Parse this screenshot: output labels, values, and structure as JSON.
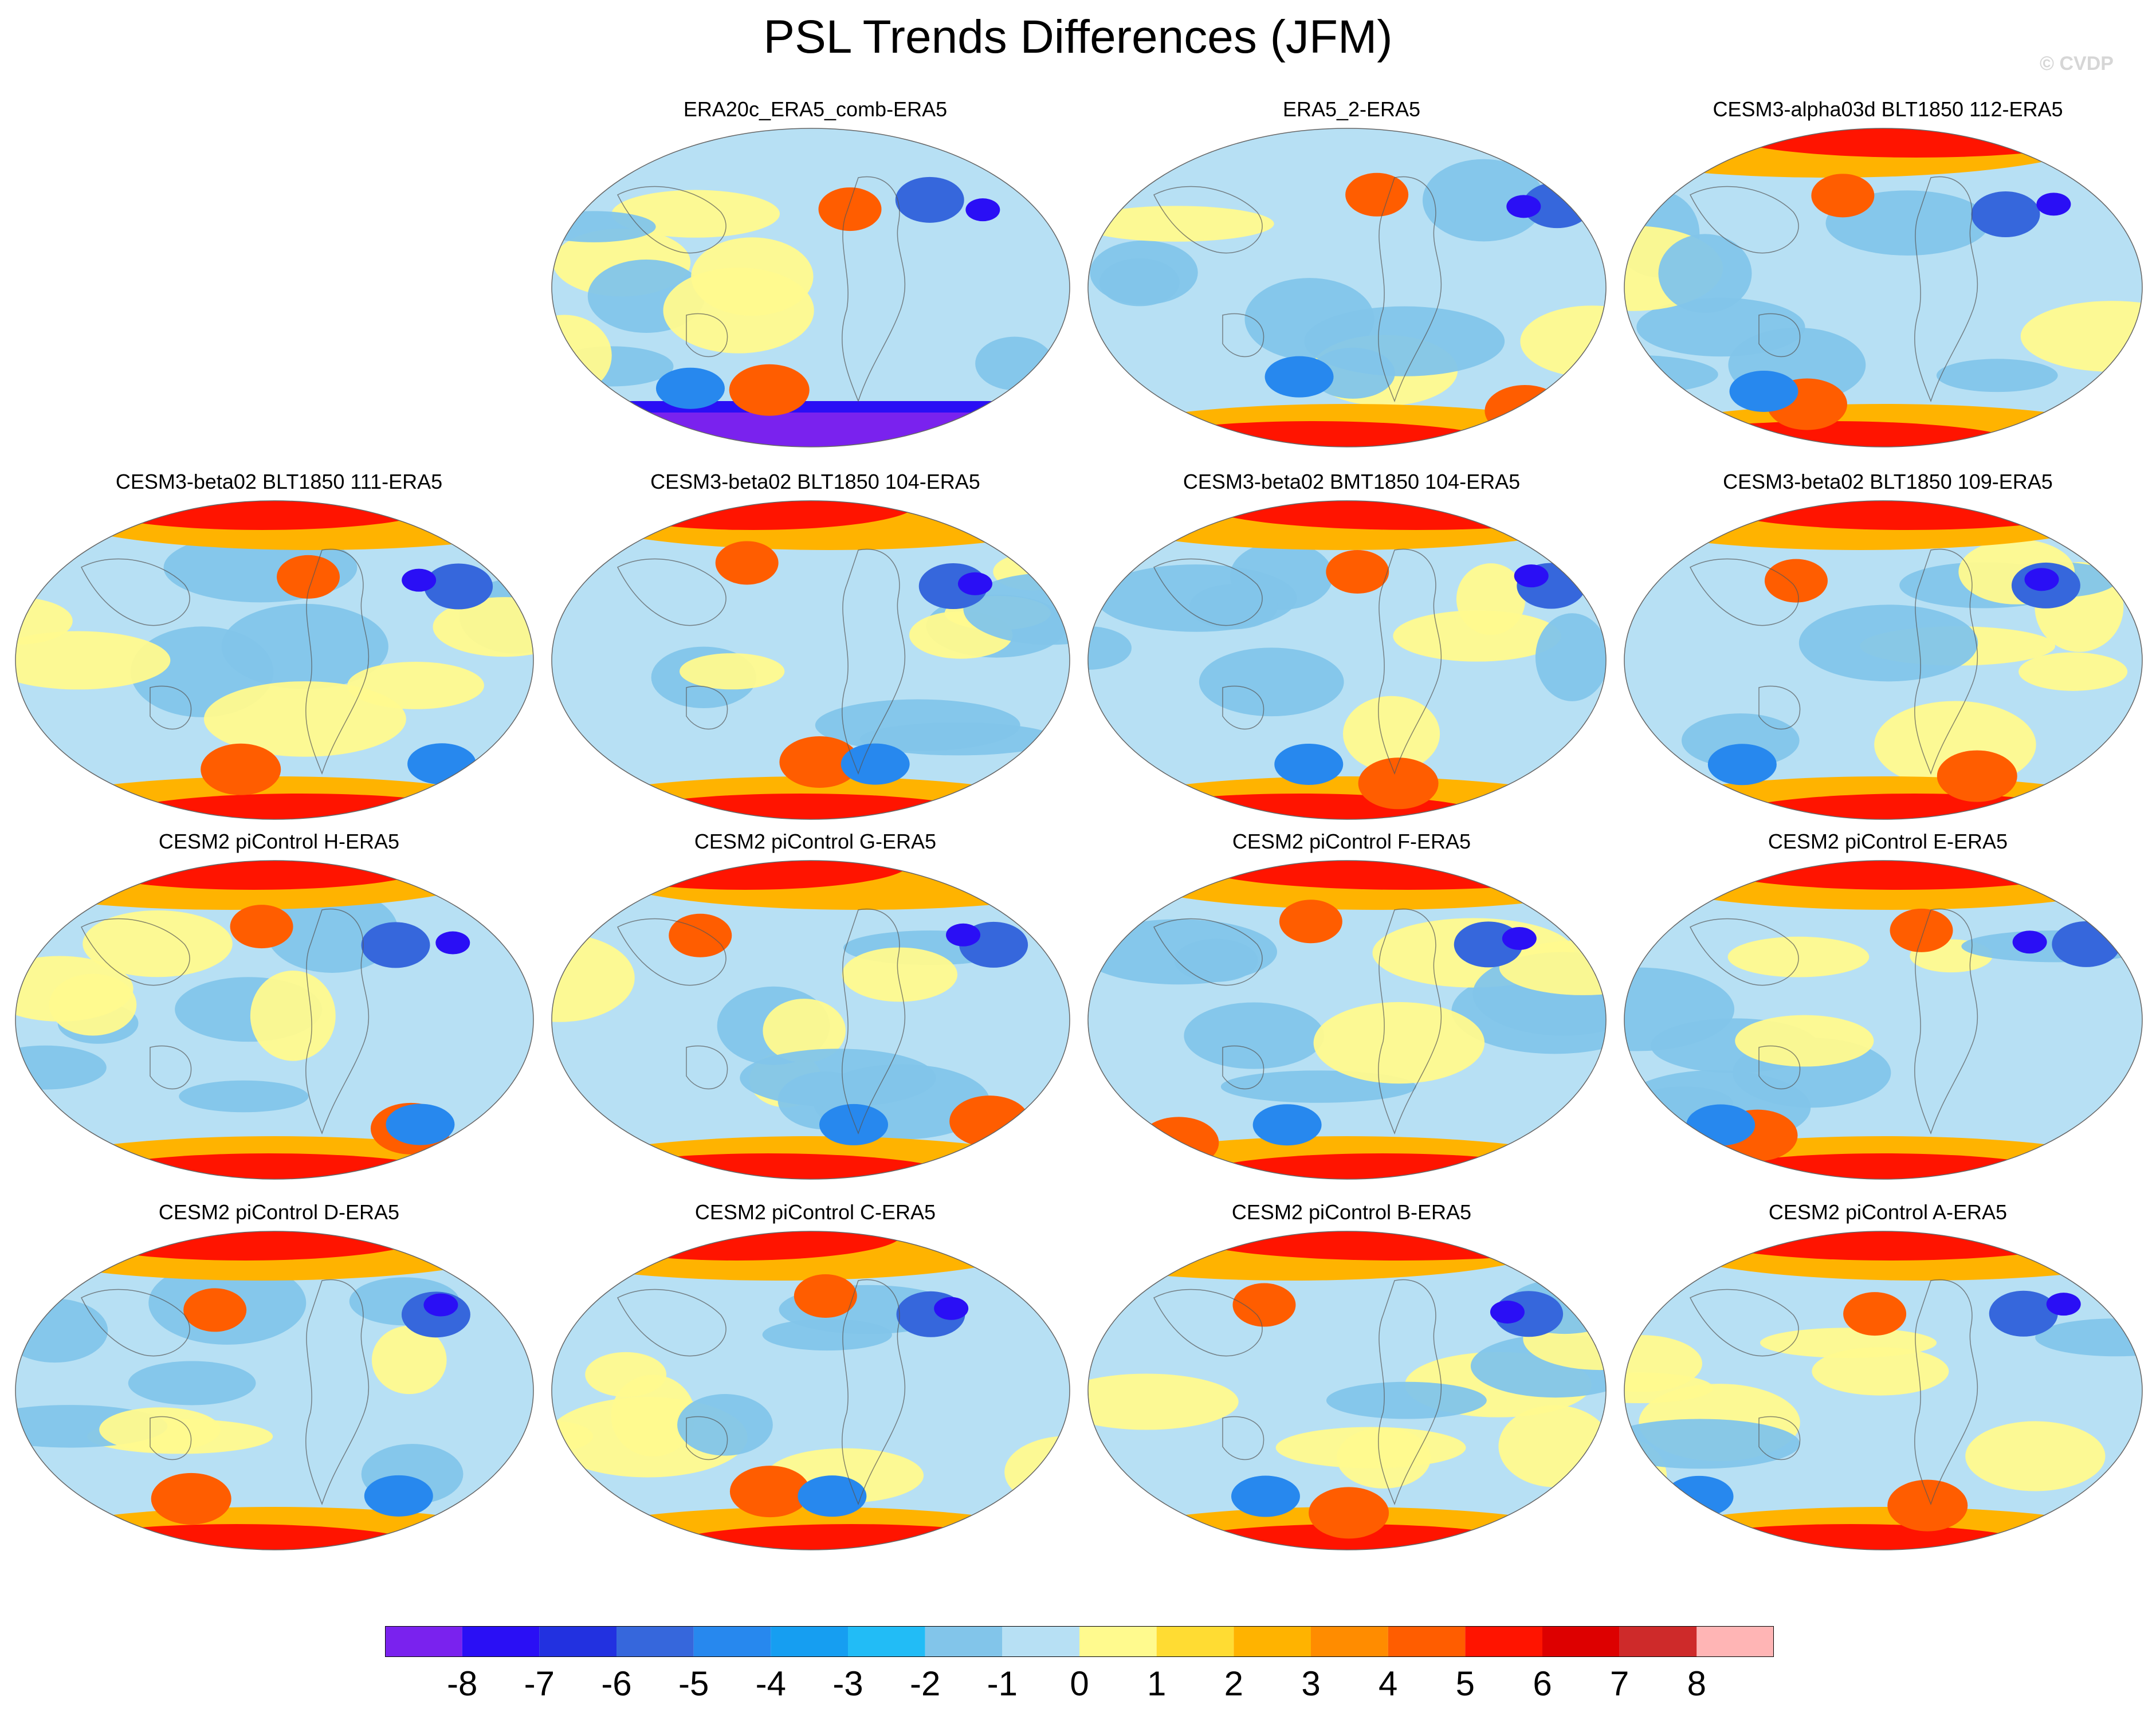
{
  "title": "PSL Trends Differences (JFM)",
  "watermark": "© CVDP",
  "panels": [
    {
      "title": "ERA20c_ERA5_comb-ERA5"
    },
    {
      "title": "ERA5_2-ERA5"
    },
    {
      "title": "CESM3-alpha03d BLT1850 112-ERA5"
    },
    {
      "title": "CESM3-beta02 BLT1850 111-ERA5"
    },
    {
      "title": "CESM3-beta02 BLT1850 104-ERA5"
    },
    {
      "title": "CESM3-beta02 BMT1850 104-ERA5"
    },
    {
      "title": "CESM3-beta02 BLT1850 109-ERA5"
    },
    {
      "title": "CESM2 piControl H-ERA5"
    },
    {
      "title": "CESM2 piControl G-ERA5"
    },
    {
      "title": "CESM2 piControl F-ERA5"
    },
    {
      "title": "CESM2 piControl E-ERA5"
    },
    {
      "title": "CESM2 piControl D-ERA5"
    },
    {
      "title": "CESM2 piControl C-ERA5"
    },
    {
      "title": "CESM2 piControl B-ERA5"
    },
    {
      "title": "CESM2 piControl A-ERA5"
    }
  ],
  "colorbar": {
    "colors": [
      "#7a22ee",
      "#2a0ff5",
      "#2231e0",
      "#3667dc",
      "#2788ee",
      "#169ef1",
      "#22bcf6",
      "#82c5ea",
      "#b7e0f4",
      "#fffa8e",
      "#ffdc33",
      "#ffb300",
      "#ff8c00",
      "#ff5d00",
      "#ff1400",
      "#dd0000",
      "#ce2a2a",
      "#ffb5b5"
    ],
    "labels": [
      "-8",
      "-7",
      "-6",
      "-5",
      "-4",
      "-3",
      "-2",
      "-1",
      "0",
      "1",
      "2",
      "3",
      "4",
      "5",
      "6",
      "7",
      "8"
    ]
  }
}
